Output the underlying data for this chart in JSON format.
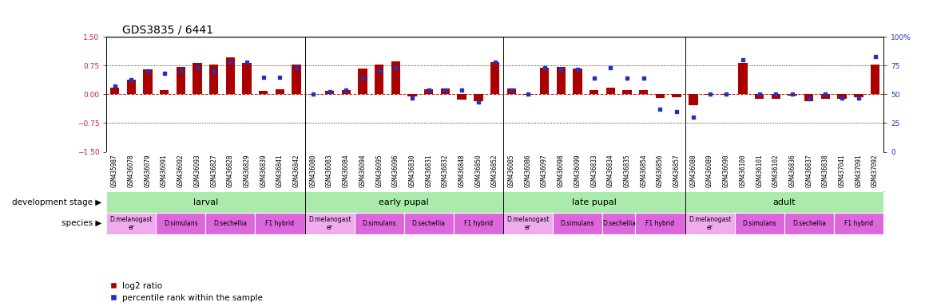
{
  "title": "GDS3835 / 6441",
  "sample_ids": [
    "GSM435987",
    "GSM436078",
    "GSM436079",
    "GSM436091",
    "GSM436092",
    "GSM436093",
    "GSM436827",
    "GSM436828",
    "GSM436829",
    "GSM436839",
    "GSM436841",
    "GSM436842",
    "GSM436080",
    "GSM436083",
    "GSM436084",
    "GSM436094",
    "GSM436095",
    "GSM436096",
    "GSM436830",
    "GSM436831",
    "GSM436832",
    "GSM436848",
    "GSM436850",
    "GSM436852",
    "GSM436085",
    "GSM436086",
    "GSM436097",
    "GSM436098",
    "GSM436099",
    "GSM436833",
    "GSM436834",
    "GSM436835",
    "GSM436854",
    "GSM436856",
    "GSM436857",
    "GSM436088",
    "GSM436089",
    "GSM436090",
    "GSM436100",
    "GSM436101",
    "GSM436102",
    "GSM436836",
    "GSM436837",
    "GSM436838",
    "GSM437041",
    "GSM437091",
    "GSM437092"
  ],
  "log2_ratio": [
    0.18,
    0.38,
    0.65,
    0.12,
    0.72,
    0.82,
    0.78,
    0.97,
    0.82,
    0.08,
    0.13,
    0.78,
    0.0,
    0.08,
    0.12,
    0.68,
    0.78,
    0.85,
    -0.05,
    0.13,
    0.15,
    -0.13,
    -0.18,
    0.83,
    0.15,
    -0.02,
    0.7,
    0.72,
    0.68,
    0.12,
    0.18,
    0.12,
    0.12,
    -0.1,
    -0.08,
    -0.28,
    -0.02,
    -0.02,
    0.82,
    -0.12,
    -0.12,
    -0.03,
    -0.18,
    -0.12,
    -0.12,
    -0.08,
    0.78
  ],
  "percentile": [
    57,
    63,
    70,
    68,
    70,
    73,
    70,
    78,
    78,
    65,
    65,
    73,
    50,
    52,
    54,
    64,
    70,
    73,
    47,
    54,
    54,
    54,
    43,
    78,
    54,
    50,
    73,
    72,
    72,
    64,
    73,
    64,
    64,
    37,
    35,
    30,
    50,
    50,
    80,
    50,
    50,
    50,
    46,
    50,
    47,
    47,
    83
  ],
  "development_stages": [
    {
      "label": "larval",
      "start": 0,
      "end": 12
    },
    {
      "label": "early pupal",
      "start": 12,
      "end": 24
    },
    {
      "label": "late pupal",
      "start": 24,
      "end": 35
    },
    {
      "label": "adult",
      "start": 35,
      "end": 47
    }
  ],
  "species_groups": [
    {
      "label": "D.melanogast\ner",
      "start": 0,
      "end": 3,
      "light": true
    },
    {
      "label": "D.simulans",
      "start": 3,
      "end": 6,
      "light": false
    },
    {
      "label": "D.sechellia",
      "start": 6,
      "end": 9,
      "light": false
    },
    {
      "label": "F1 hybrid",
      "start": 9,
      "end": 12,
      "light": false
    },
    {
      "label": "D.melanogast\ner",
      "start": 12,
      "end": 15,
      "light": true
    },
    {
      "label": "D.simulans",
      "start": 15,
      "end": 18,
      "light": false
    },
    {
      "label": "D.sechellia",
      "start": 18,
      "end": 21,
      "light": false
    },
    {
      "label": "F1 hybrid",
      "start": 21,
      "end": 24,
      "light": false
    },
    {
      "label": "D.melanogast\ner",
      "start": 24,
      "end": 27,
      "light": true
    },
    {
      "label": "D.simulans",
      "start": 27,
      "end": 30,
      "light": false
    },
    {
      "label": "D.sechellia",
      "start": 30,
      "end": 32,
      "light": false
    },
    {
      "label": "F1 hybrid",
      "start": 32,
      "end": 35,
      "light": false
    },
    {
      "label": "D.melanogast\ner",
      "start": 35,
      "end": 38,
      "light": true
    },
    {
      "label": "D.simulans",
      "start": 38,
      "end": 41,
      "light": false
    },
    {
      "label": "D.sechellia",
      "start": 41,
      "end": 44,
      "light": false
    },
    {
      "label": "F1 hybrid",
      "start": 44,
      "end": 47,
      "light": false
    }
  ],
  "ylim": [
    -1.5,
    1.5
  ],
  "yticks_left": [
    -1.5,
    -0.75,
    0.0,
    0.75,
    1.5
  ],
  "yticks_right": [
    0,
    25,
    50,
    75,
    100
  ],
  "bar_color": "#aa0000",
  "dot_color": "#2233bb",
  "bg_color": "#ffffff",
  "dev_stage_color": "#aaeaaa",
  "dev_stage_alt_color": "#77dd77",
  "species_light_color": "#f0aaee",
  "species_dark_color": "#dd66dd",
  "title_fontsize": 10,
  "tick_fontsize": 6.5,
  "label_fontsize": 8,
  "sample_fontsize": 5.5
}
